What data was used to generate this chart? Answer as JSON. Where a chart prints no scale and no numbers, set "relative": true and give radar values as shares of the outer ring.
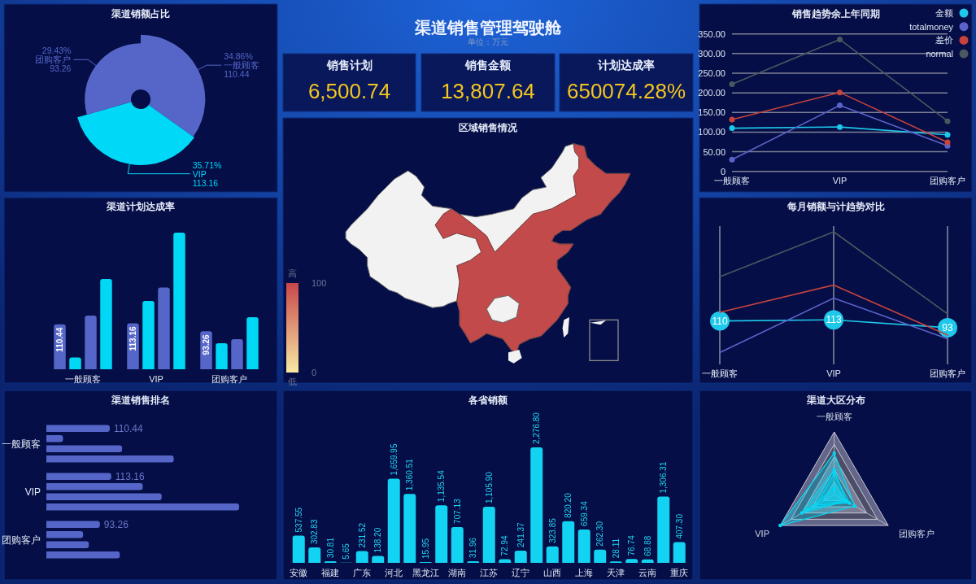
{
  "chart_data": [
    {
      "type": "donut",
      "title": "渠道销额占比",
      "categories": [
        "一般顾客",
        "VIP",
        "团购客户"
      ],
      "values": [
        110.44,
        113.16,
        93.26
      ],
      "colors": [
        "#5566c8",
        "#00d8f8",
        "#5566c8"
      ],
      "data_labels": true,
      "annotations": [
        "34.86%",
        "35.71%",
        "29.43%"
      ]
    },
    {
      "type": "other",
      "title": "渠道销售管理驾驶舱",
      "subtitle": "单位：万元"
    },
    {
      "type": "other",
      "title": "销售计划",
      "annotations": [
        "6,500.74"
      ]
    },
    {
      "type": "other",
      "title": "销售金额",
      "annotations": [
        "13,807.64"
      ]
    },
    {
      "type": "other",
      "title": "计划达成率",
      "annotations": [
        "650074.28%"
      ]
    },
    {
      "type": "line",
      "title": "销售趋势余上年同期",
      "categories": [
        "一般顾客",
        "VIP",
        "团购客户"
      ],
      "series": [
        {
          "name": "金额",
          "color": "#1ec8ea",
          "values": [
            110,
            113,
            93
          ]
        },
        {
          "name": "totalmoney",
          "color": "#5b63c9",
          "values": [
            30,
            168,
            65
          ]
        },
        {
          "name": "差价",
          "color": "#c8433d",
          "values": [
            132,
            201,
            74
          ]
        },
        {
          "name": "normal",
          "color": "#4b5860",
          "values": [
            222,
            336,
            128
          ]
        }
      ],
      "ylim": [
        0,
        350
      ],
      "yticks": [
        0,
        {
          "value": 50,
          "label": "50.00"
        },
        {
          "value": 100,
          "label": "100.00"
        },
        {
          "value": 150,
          "label": "150.00"
        },
        {
          "value": 200,
          "label": "200.00"
        },
        {
          "value": 250,
          "label": "250.00"
        },
        {
          "value": 300,
          "label": "300.00"
        },
        {
          "value": 350,
          "label": "350.00"
        }
      ],
      "grid": "y",
      "legend": "top right",
      "marker": "circle"
    },
    {
      "type": "bar",
      "title": "渠道计划达成率",
      "categories": [
        "一般顾客",
        "VIP",
        "团购客户"
      ],
      "series": [
        {
          "color": "#5566c8",
          "values": [
            110.44,
            113.16,
            93.26
          ],
          "value_labels": [
            "110.44",
            "113.16",
            "93.26"
          ]
        },
        {
          "color": "#00d8f5",
          "values": [
            29,
            168,
            64
          ]
        },
        {
          "color": "#5566c8",
          "values": [
            132,
            201,
            74
          ]
        },
        {
          "color": "#00d8f5",
          "values": [
            222,
            336,
            128
          ]
        }
      ]
    },
    {
      "type": "other",
      "title": "区域销售情况",
      "annotations": [
        "高",
        "100",
        "0",
        "低"
      ]
    },
    {
      "type": "line",
      "title": "每月销额与计趋势对比",
      "categories": [
        "一般顾客",
        "VIP",
        "团购客户"
      ],
      "series": [
        {
          "color": "#1ec8ea",
          "values": [
            110,
            113,
            93
          ],
          "value_labels": [
            "110",
            "113",
            "93"
          ],
          "marker": "circle"
        },
        {
          "color": "#5b63c9",
          "values": [
            30,
            168,
            65
          ]
        },
        {
          "color": "#c8433d",
          "values": [
            132,
            201,
            74
          ]
        },
        {
          "color": "#4b5860",
          "values": [
            222,
            336,
            128
          ]
        }
      ],
      "grid": "x",
      "tick_labels": "x"
    },
    {
      "type": "bar",
      "orientation": "horizontal",
      "title": "渠道销售排名",
      "categories": [
        "一般顾客",
        "VIP",
        "团购客户"
      ],
      "series": [
        {
          "color": "#5566c8",
          "values": [
            110.44,
            113.16,
            93.26
          ],
          "value_labels": [
            "110.44",
            "113.16",
            "93.26"
          ]
        },
        {
          "color": "#5566c8",
          "values": [
            29,
            168,
            64
          ]
        },
        {
          "color": "#5566c8",
          "values": [
            132,
            201,
            74
          ]
        },
        {
          "color": "#5566c8",
          "values": [
            222,
            336,
            128
          ]
        }
      ]
    },
    {
      "type": "bar",
      "title": "各省销额",
      "categories": [
        "安徽",
        null,
        "福建",
        null,
        "广东",
        null,
        "河北",
        null,
        "黑龙江",
        null,
        "湖南",
        null,
        "江苏",
        null,
        "辽宁",
        null,
        "山西",
        null,
        "上海",
        null,
        "天津",
        null,
        "云南",
        null,
        "重庆"
      ],
      "values": [
        537.55,
        302.83,
        30.81,
        5.65,
        231.52,
        138.2,
        1659.95,
        1360.51,
        15.95,
        1135.54,
        707.13,
        31.96,
        1105.9,
        72.94,
        241.37,
        2276.8,
        323.85,
        820.2,
        659.34,
        262.3,
        28.11,
        76.74,
        68.88,
        1306.31,
        407.3
      ],
      "color": "#12d3f2",
      "value_labels": [
        "537.55",
        "302.83",
        "30.81",
        "5.65",
        "231.52",
        "138.20",
        "1,659.95",
        "1,360.51",
        "15.95",
        "1,135.54",
        "707.13",
        "31.96",
        "1,105.90",
        "72.94",
        "241.37",
        "2,276.80",
        "323.85",
        "820.20",
        "659.34",
        "262.30",
        "28.11",
        "76.74",
        "68.88",
        "1,306.31",
        "407.30"
      ]
    },
    {
      "type": "radar",
      "title": "渠道大区分布",
      "categories": [
        "一般顾客",
        "团购客户",
        "VIP"
      ],
      "relative": true,
      "marker": "circle",
      "series": [
        {
          "color": "#00d8f5",
          "values": [
            0.33,
            0.28,
            0.34
          ]
        },
        {
          "color": "#00d8f5",
          "values": [
            0.09,
            0.19,
            0.5
          ]
        },
        {
          "color": "#00d8f5",
          "values": [
            0.39,
            0.22,
            0.6
          ]
        },
        {
          "color": "#00d8f5",
          "values": [
            0.66,
            0.38,
            1
          ]
        }
      ]
    }
  ]
}
